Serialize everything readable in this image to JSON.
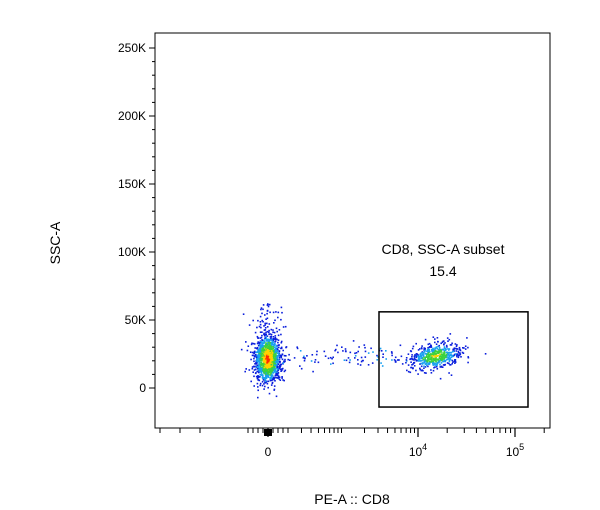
{
  "chart_data": {
    "type": "scatter",
    "subtype": "flow-cytometry-pseudocolor-density",
    "xlabel": "PE-A :: CD8",
    "ylabel": "SSC-A",
    "x_scale": "biexponential",
    "xlim": [
      -300,
      200000
    ],
    "ylim": [
      -30000,
      262144
    ],
    "x_ticks": [
      {
        "value": 0,
        "label": "0"
      },
      {
        "value": 10000,
        "label": "10",
        "exp": "4"
      },
      {
        "value": 100000,
        "label": "10",
        "exp": "5"
      }
    ],
    "y_ticks": [
      {
        "value": 0,
        "label": "0"
      },
      {
        "value": 50000,
        "label": "50K"
      },
      {
        "value": 100000,
        "label": "100K"
      },
      {
        "value": 150000,
        "label": "150K"
      },
      {
        "value": 200000,
        "label": "200K"
      },
      {
        "value": 250000,
        "label": "250K"
      }
    ],
    "gate": {
      "name": "CD8, SSC-A subset",
      "percent": "15.4",
      "x_range": [
        3000,
        120000
      ],
      "y_range": [
        -14000,
        56000
      ]
    },
    "populations": [
      {
        "name": "CD8-negative",
        "center_x": 0,
        "center_y": 22000,
        "spread": "dense",
        "share": 0.846
      },
      {
        "name": "CD8-positive",
        "center_x": 17000,
        "center_y": 24000,
        "spread": "moderate",
        "share": 0.154
      }
    ],
    "colors": {
      "high_density": "#ff2a00",
      "mid_high": "#ffd200",
      "mid": "#3cd23c",
      "mid_low": "#19a0f0",
      "low_density": "#0a1edc"
    },
    "grid": false,
    "legend": "none"
  }
}
